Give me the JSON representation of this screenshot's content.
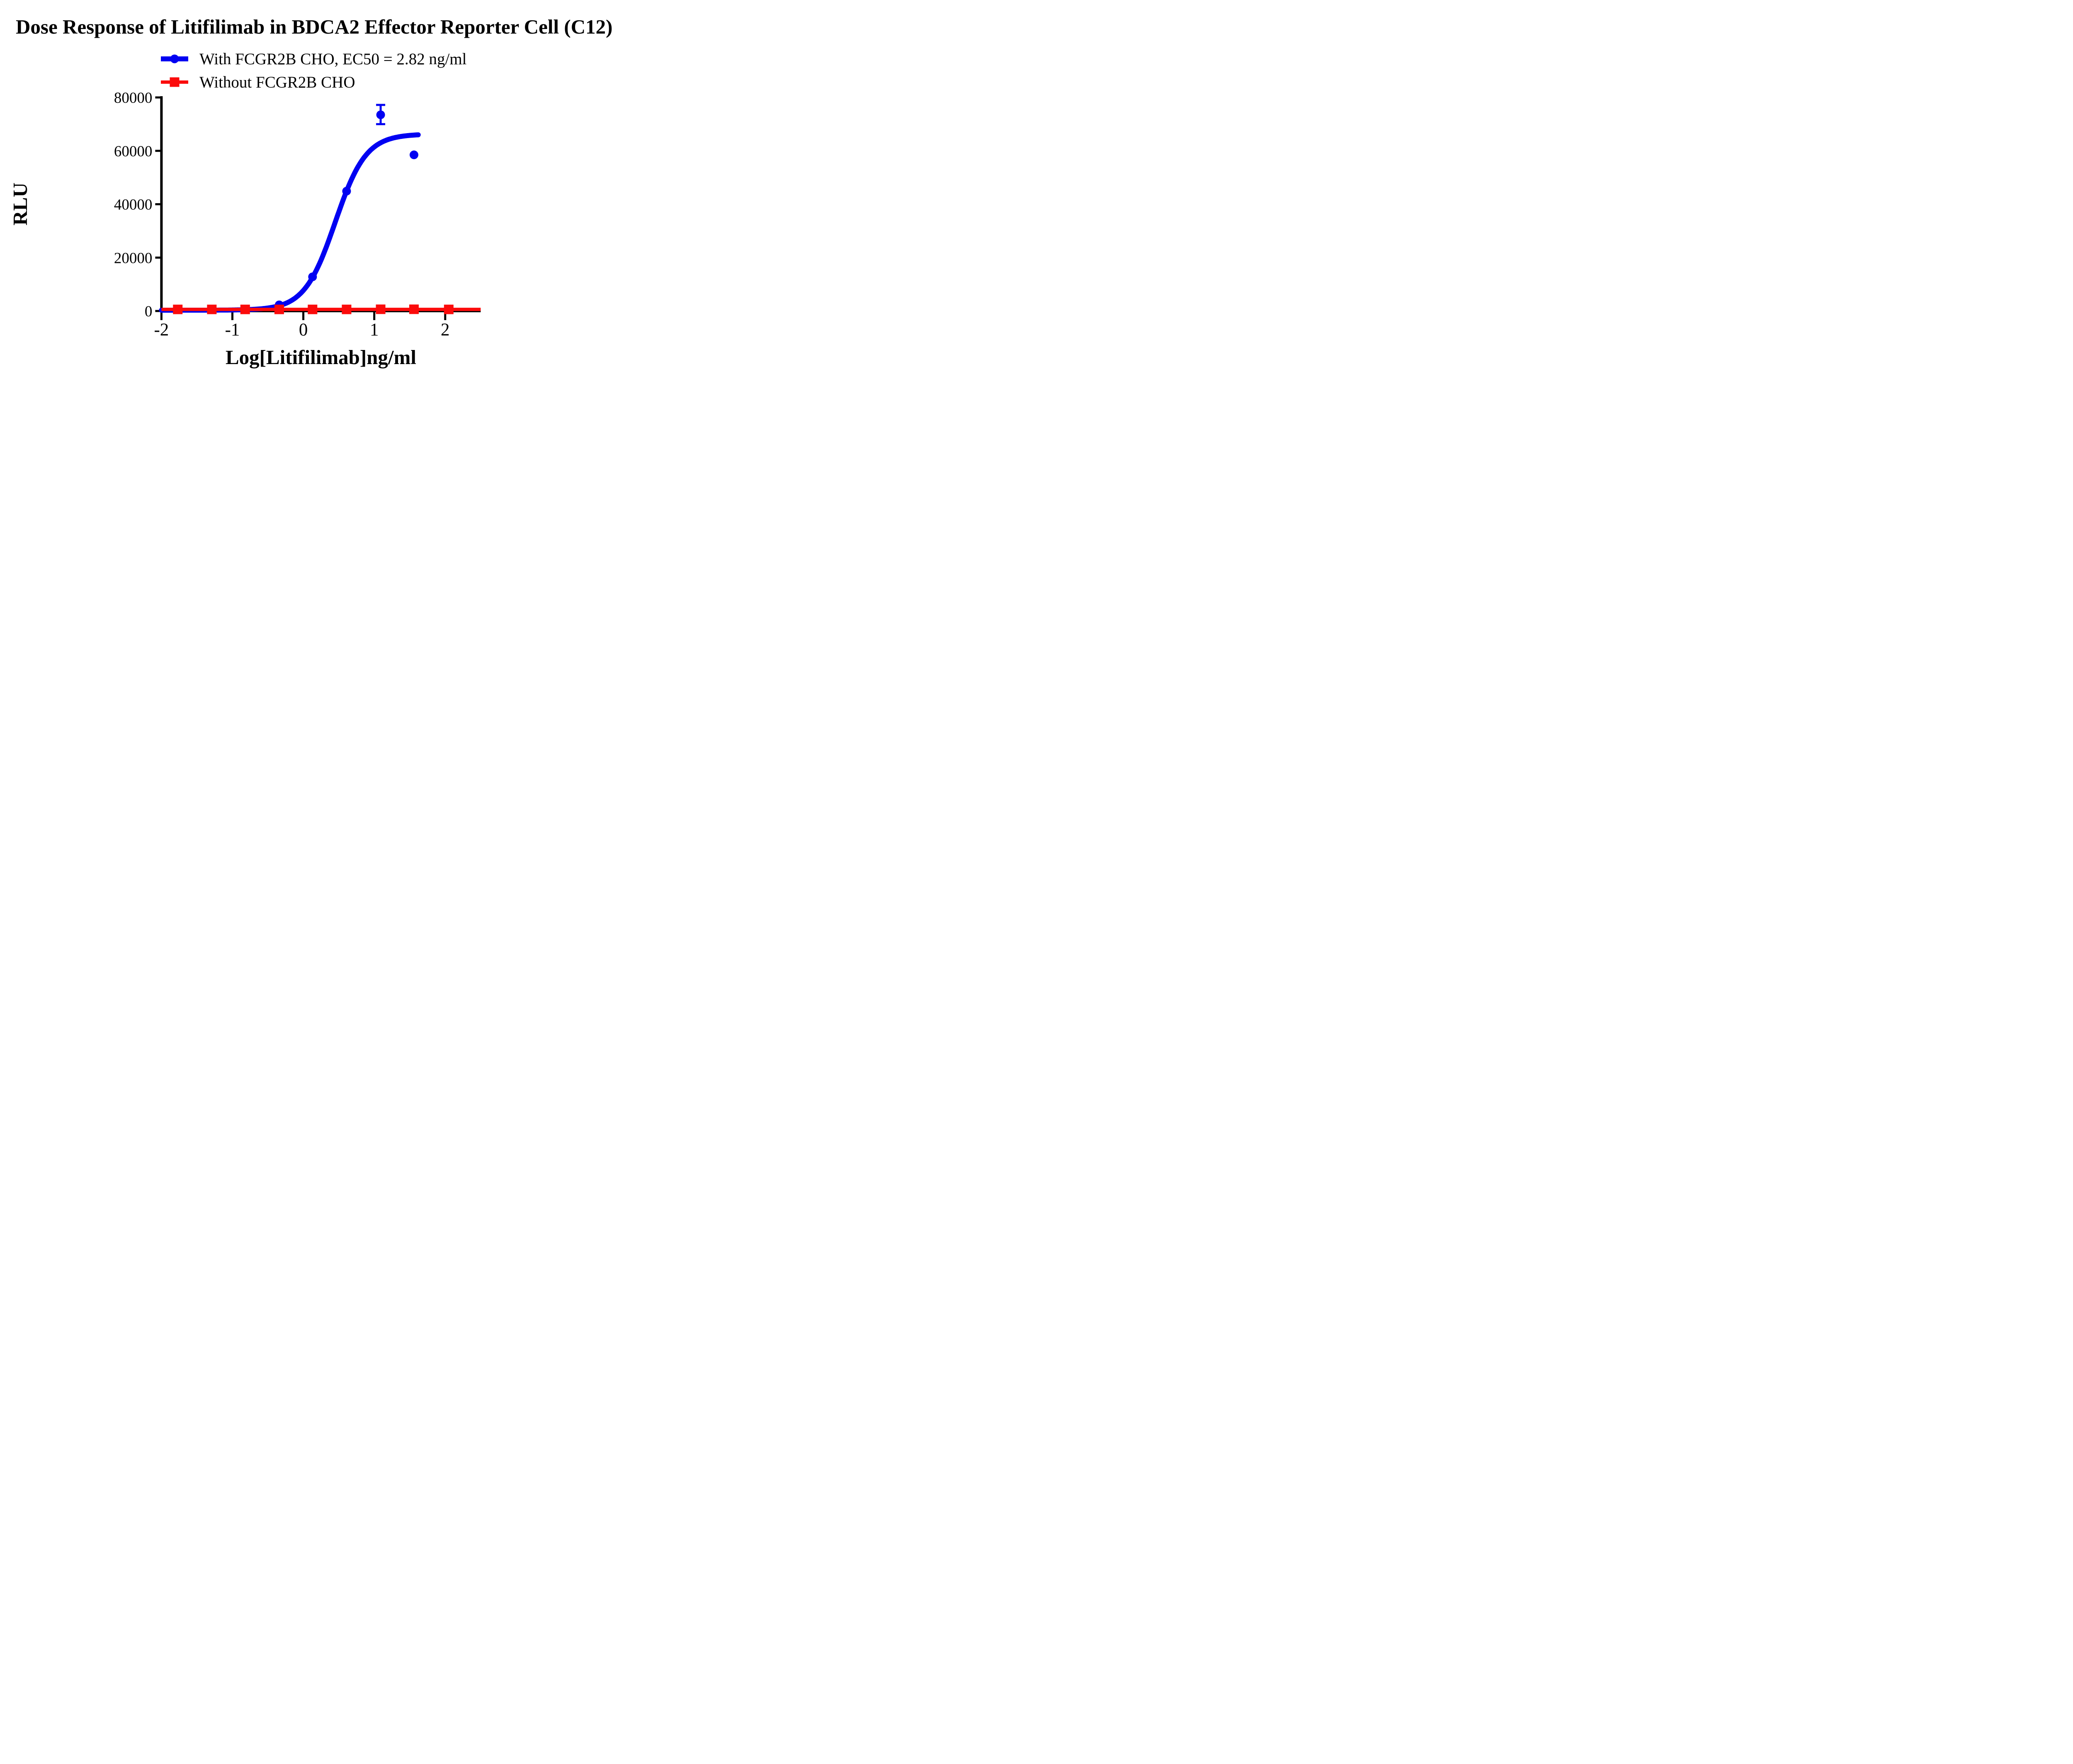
{
  "title": "Dose Response of Litifilimab in BDCA2 Effector Reporter Cell (C12)",
  "legend": [
    {
      "label": "With FCGR2B CHO, EC50 = 2.82 ng/ml",
      "marker": "circle",
      "color": "#0101f2"
    },
    {
      "label": "Without FCGR2B CHO",
      "marker": "square",
      "color": "#fb0b0b"
    }
  ],
  "axes": {
    "x_title": "Log[Litifilimab]ng/ml",
    "y_title": "RLU"
  },
  "chart_data": {
    "type": "line",
    "title": "Dose Response of Litifilimab in BDCA2 Effector Reporter Cell (C12)",
    "xlabel": "Log[Litifilimab]ng/ml",
    "ylabel": "RLU",
    "xlim": [
      -2,
      2.5
    ],
    "ylim": [
      0,
      80000
    ],
    "x_ticks": [
      -2,
      -1,
      0,
      1,
      2
    ],
    "y_ticks": [
      0,
      20000,
      40000,
      60000,
      80000
    ],
    "grid": false,
    "legend_position": "top-left above plot",
    "series": [
      {
        "name": "With FCGR2B CHO, EC50 = 2.82 ng/ml",
        "color": "#0101f2",
        "marker": "circle",
        "x": [
          -1.77,
          -1.29,
          -0.82,
          -0.34,
          0.13,
          0.61,
          1.09,
          1.56
        ],
        "y": [
          500,
          500,
          550,
          2300,
          12800,
          44900,
          73500,
          58500
        ],
        "error_bar": {
          "x": 1.09,
          "y": 73500,
          "low": 70000,
          "high": 77200
        },
        "ec50_ng_ml": 2.82,
        "fit_curve": {
          "model": "4PL",
          "bottom": 300,
          "top": 66300,
          "log_ec50": 0.45,
          "hill": 2.0,
          "x_start": -2.0,
          "x_end": 1.62
        }
      },
      {
        "name": "Without FCGR2B CHO",
        "color": "#fb0b0b",
        "marker": "square",
        "x": [
          -1.77,
          -1.29,
          -0.82,
          -0.34,
          0.13,
          0.61,
          1.09,
          1.56,
          2.05
        ],
        "y": [
          600,
          600,
          600,
          600,
          600,
          600,
          650,
          650,
          600
        ],
        "flat_line": {
          "y": 600,
          "x_start": -2.0,
          "x_end": 2.5
        }
      }
    ]
  }
}
